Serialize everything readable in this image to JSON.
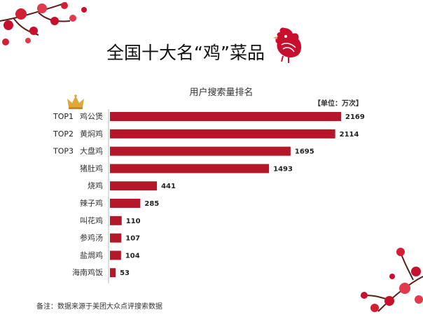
{
  "header": {
    "title": "全国十大名“鸡”菜品",
    "crown_icon": "crown-icon",
    "rooster_icon": "rooster-papercut-icon",
    "blossom_icon": "plum-blossom-icon"
  },
  "footer": {
    "note": "备注：数据来源于美团大众点评搜索数据"
  },
  "colors": {
    "bar": "#b5172a",
    "accent": "#c8102e",
    "crown": "#e0a83a"
  },
  "chart_data": {
    "type": "bar",
    "orientation": "horizontal",
    "title": "用户搜索量排名",
    "unit_label": "【单位：万次】",
    "categories": [
      "鸡公煲",
      "黄焖鸡",
      "大盘鸡",
      "猪肚鸡",
      "烧鸡",
      "辣子鸡",
      "叫花鸡",
      "参鸡汤",
      "盐焗鸡",
      "海南鸡饭"
    ],
    "ranks": [
      "TOP1",
      "TOP2",
      "TOP3",
      "",
      "",
      "",
      "",
      "",
      "",
      ""
    ],
    "values": [
      2169,
      2114,
      1695,
      1493,
      441,
      285,
      110,
      107,
      104,
      53
    ],
    "xlim": [
      0,
      2169
    ],
    "grid": false,
    "legend": "none"
  }
}
